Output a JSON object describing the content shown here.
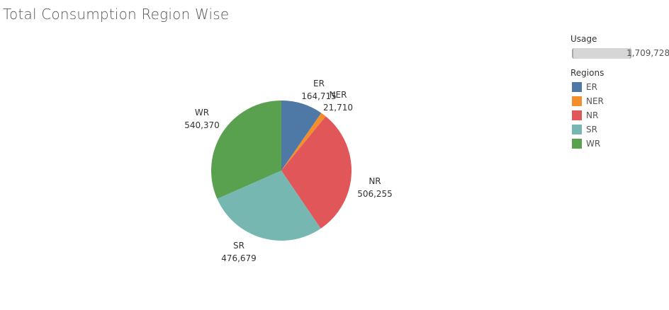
{
  "title": "Total Consumption Region Wise",
  "legend": {
    "usage_heading": "Usage",
    "usage_value": "1,709,728",
    "regions_heading": "Regions"
  },
  "chart_data": {
    "type": "pie",
    "title": "Total Consumption Region Wise",
    "start_angle_deg": 0,
    "direction": "clockwise",
    "slices": [
      {
        "name": "ER",
        "value": 164715,
        "label": "164,715",
        "color": "#4e79a7"
      },
      {
        "name": "NER",
        "value": 21710,
        "label": "21,710",
        "color": "#f28e2b"
      },
      {
        "name": "NR",
        "value": 506255,
        "label": "506,255",
        "color": "#e15759"
      },
      {
        "name": "SR",
        "value": 476679,
        "label": "476,679",
        "color": "#76b7b2"
      },
      {
        "name": "WR",
        "value": 540370,
        "label": "540,370",
        "color": "#59a14f"
      }
    ]
  }
}
